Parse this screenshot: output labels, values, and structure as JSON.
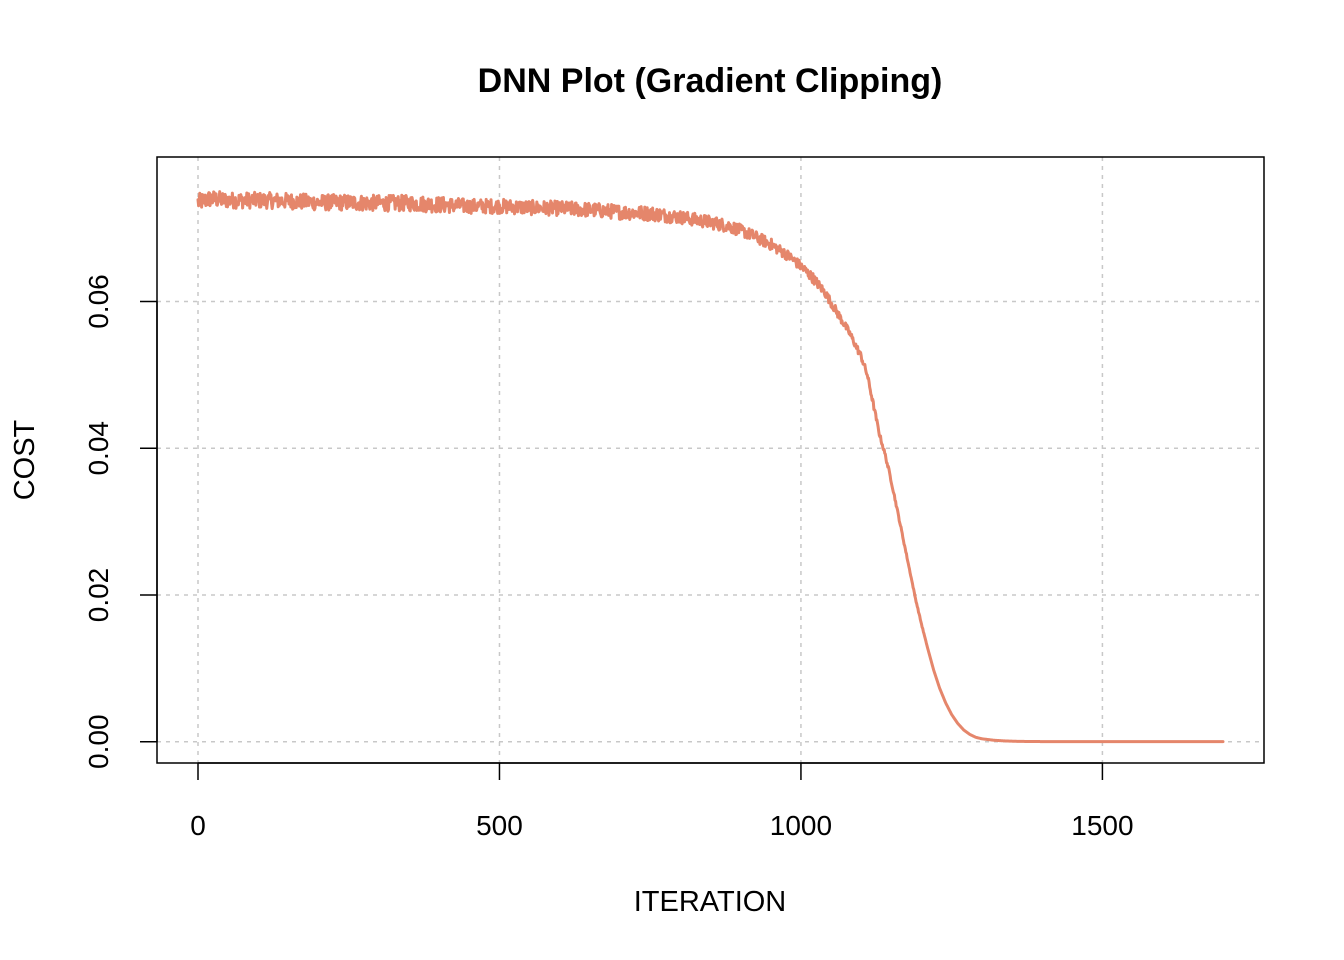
{
  "chart_data": {
    "type": "line",
    "title": "DNN Plot (Gradient Clipping)",
    "xlabel": "ITERATION",
    "ylabel": "COST",
    "xlim": [
      -68,
      1768
    ],
    "ylim": [
      -0.0029,
      0.0797
    ],
    "x_ticks": [
      0,
      500,
      1000,
      1500
    ],
    "x_tick_labels": [
      "0",
      "500",
      "1000",
      "1500"
    ],
    "y_ticks": [
      0,
      0.02,
      0.04,
      0.06
    ],
    "y_tick_labels": [
      "0.00",
      "0.02",
      "0.04",
      "0.06"
    ],
    "grid": true,
    "legend": "none",
    "series": [
      {
        "color": "#e5866b",
        "x": [
          0,
          20,
          50,
          100,
          150,
          200,
          250,
          300,
          350,
          400,
          450,
          500,
          550,
          600,
          650,
          700,
          750,
          800,
          850,
          880,
          900,
          920,
          950,
          980,
          1000,
          1020,
          1040,
          1060,
          1080,
          1100,
          1110,
          1120,
          1130,
          1140,
          1150,
          1160,
          1170,
          1180,
          1190,
          1200,
          1210,
          1220,
          1230,
          1240,
          1250,
          1260,
          1270,
          1280,
          1290,
          1300,
          1320,
          1340,
          1360,
          1380,
          1400,
          1450,
          1500,
          1550,
          1600,
          1650,
          1700
        ],
        "y": [
          0.0735,
          0.074,
          0.0738,
          0.0738,
          0.0737,
          0.0735,
          0.0735,
          0.0734,
          0.0734,
          0.0732,
          0.073,
          0.073,
          0.0728,
          0.0727,
          0.0725,
          0.0722,
          0.072,
          0.0715,
          0.0708,
          0.0703,
          0.0697,
          0.069,
          0.0678,
          0.0662,
          0.0648,
          0.0632,
          0.0612,
          0.0585,
          0.0558,
          0.0525,
          0.05,
          0.046,
          0.042,
          0.039,
          0.0355,
          0.0315,
          0.0275,
          0.0235,
          0.0195,
          0.016,
          0.0128,
          0.0098,
          0.0073,
          0.0053,
          0.0037,
          0.0025,
          0.0016,
          0.001,
          0.0006,
          0.0004,
          0.0002,
          0.0001,
          5e-05,
          3e-05,
          2e-05,
          1e-05,
          1e-05,
          1e-05,
          1e-05,
          1e-05,
          1e-05
        ],
        "noise_amplitude": [
          0.0012,
          0.0012,
          0.0011,
          0.0011,
          0.0011,
          0.0011,
          0.0011,
          0.0011,
          0.0011,
          0.0011,
          0.001,
          0.001,
          0.001,
          0.001,
          0.001,
          0.001,
          0.001,
          0.0009,
          0.0009,
          0.0009,
          0.0008,
          0.0008,
          0.0008,
          0.0007,
          0.0007,
          0.0007,
          0.0006,
          0.0006,
          0.0005,
          0.0005,
          0.0004,
          0.0004,
          0.0003,
          0.0003,
          0.0003,
          0.0002,
          0.0002,
          0.0001,
          0.0001,
          0.0001,
          0,
          0,
          0,
          0,
          0,
          0,
          0,
          0,
          0,
          0,
          0,
          0,
          0,
          0,
          0,
          0,
          0,
          0,
          0,
          0,
          0
        ]
      }
    ]
  }
}
